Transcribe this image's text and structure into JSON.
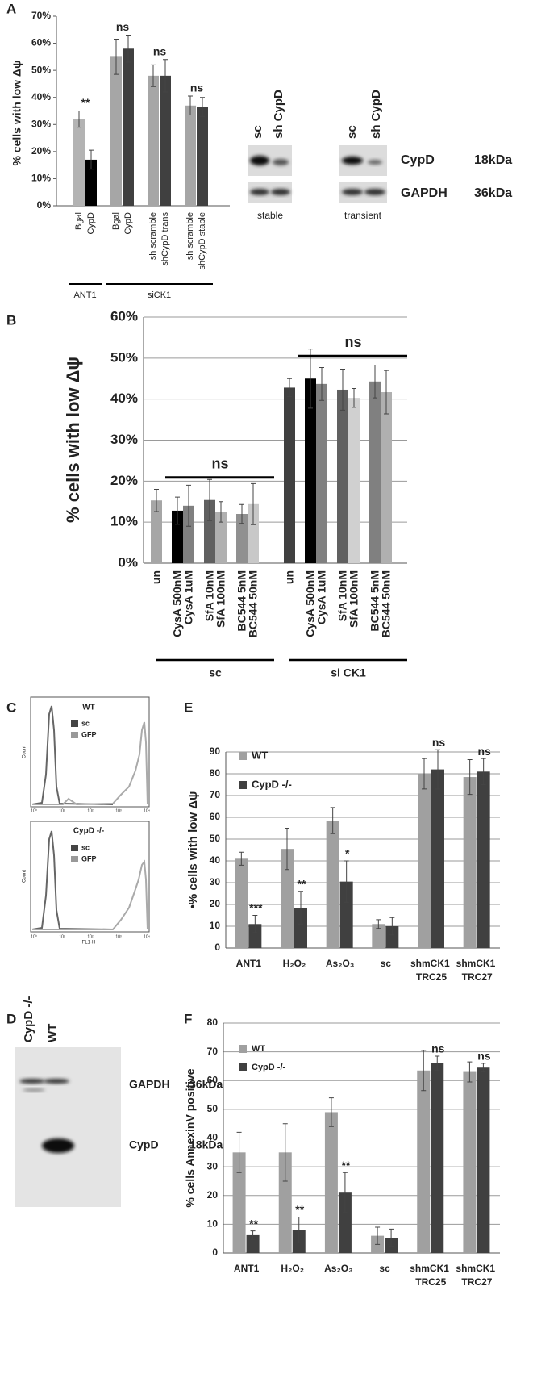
{
  "chart_data": [
    {
      "type": "bar",
      "panel": "A",
      "ylabel": "% cells with low Δψ",
      "ylim": [
        0,
        70
      ],
      "yticks": [
        {
          "value": 0,
          "label": "0%"
        },
        {
          "value": 10,
          "label": "10%"
        },
        {
          "value": 20,
          "label": "20%"
        },
        {
          "value": 30,
          "label": "30%"
        },
        {
          "value": 40,
          "label": "40%"
        },
        {
          "value": 50,
          "label": "50%"
        },
        {
          "value": 60,
          "label": "60%"
        },
        {
          "value": 70,
          "label": "70%"
        }
      ],
      "grid": false,
      "groups": [
        {
          "name": "ANT1",
          "pairs": [
            {
              "significance": "**",
              "bars": [
                {
                  "label": "Bgal",
                  "value": 32,
                  "error": 3,
                  "color": "#b3b3b3"
                },
                {
                  "label": "CypD",
                  "value": 17,
                  "error": 3.5,
                  "color": "#000000"
                }
              ]
            }
          ]
        },
        {
          "name": "siCK1",
          "pairs": [
            {
              "significance": "ns",
              "bars": [
                {
                  "label": "Bgal",
                  "value": 55,
                  "error": 6.5,
                  "color": "#a6a6a6"
                },
                {
                  "label": "CypD",
                  "value": 58,
                  "error": 5,
                  "color": "#404040"
                }
              ]
            },
            {
              "significance": "ns",
              "bars": [
                {
                  "label": "sh scramble",
                  "value": 48,
                  "error": 4,
                  "color": "#a6a6a6"
                },
                {
                  "label": "shCypD trans",
                  "value": 48,
                  "error": 6,
                  "color": "#404040"
                }
              ]
            },
            {
              "significance": "ns",
              "bars": [
                {
                  "label": "sh scramble",
                  "value": 37,
                  "error": 3.5,
                  "color": "#a6a6a6"
                },
                {
                  "label": "shCypD stable",
                  "value": 36.5,
                  "error": 3.5,
                  "color": "#404040"
                }
              ]
            }
          ]
        }
      ]
    },
    {
      "type": "bar",
      "panel": "B",
      "ylabel": "% cells with low Δψ",
      "ylim": [
        0,
        60
      ],
      "yticks": [
        {
          "value": 0,
          "label": "0%"
        },
        {
          "value": 10,
          "label": "10%"
        },
        {
          "value": 20,
          "label": "20%"
        },
        {
          "value": 30,
          "label": "30%"
        },
        {
          "value": 40,
          "label": "40%"
        },
        {
          "value": 50,
          "label": "50%"
        },
        {
          "value": 60,
          "label": "60%"
        }
      ],
      "grid": true,
      "categories": [
        "un",
        "CysA 500nM",
        "CysA 1uM",
        "SfA 10nM",
        "SfA 100nM",
        "BC544 5nM",
        "BC544 50nM"
      ],
      "groups": [
        {
          "name": "sc",
          "significance": "ns",
          "values": [
            15.3,
            12.8,
            14,
            15.4,
            12.5,
            12,
            14.4
          ],
          "errors": [
            2.7,
            3.3,
            5,
            5,
            2.5,
            2.3,
            5
          ],
          "colors": [
            "#a6a6a6",
            "#000000",
            "#808080",
            "#606060",
            "#b0b0b0",
            "#909090",
            "#c8c8c8"
          ]
        },
        {
          "name": "si CK1",
          "significance": "ns",
          "values": [
            42.8,
            45,
            43.7,
            42.3,
            40.3,
            44.3,
            41.7
          ],
          "errors": [
            2.2,
            7.2,
            4,
            5,
            2.3,
            4,
            5.3
          ],
          "colors": [
            "#404040",
            "#000000",
            "#808080",
            "#606060",
            "#d0d0d0",
            "#808080",
            "#b0b0b0"
          ]
        }
      ]
    },
    {
      "type": "bar",
      "panel": "E",
      "ylabel": "•% cells with low Δψ",
      "ylim": [
        0,
        90
      ],
      "yticks": [
        0,
        10,
        20,
        30,
        40,
        50,
        60,
        70,
        80,
        90
      ],
      "grid": true,
      "legend": "upper left",
      "categories": [
        "ANT1",
        "H₂O₂",
        "As₂O₃",
        "sc",
        "shmCK1 TRC25",
        "shmCK1 TRC27"
      ],
      "series": [
        {
          "name": "WT",
          "color": "#a0a0a0",
          "values": [
            41,
            45.5,
            58.5,
            11,
            80,
            78.5
          ],
          "errors": [
            3,
            9.5,
            6,
            2,
            7,
            8
          ]
        },
        {
          "name": "CypD -/-",
          "color": "#404040",
          "values": [
            11,
            18.5,
            30.5,
            10,
            82,
            81
          ],
          "errors": [
            4,
            7.5,
            9.5,
            4,
            9,
            6
          ]
        }
      ],
      "annotations": [
        "***",
        "**",
        "*",
        null,
        "ns",
        "ns"
      ]
    },
    {
      "type": "bar",
      "panel": "F",
      "ylabel": "% cells  AnnexinV positive",
      "ylim": [
        0,
        80
      ],
      "yticks": [
        0,
        10,
        20,
        30,
        40,
        50,
        60,
        70,
        80
      ],
      "grid": true,
      "legend": "upper left",
      "categories": [
        "ANT1",
        "H₂O₂",
        "As₂O₃",
        "sc",
        "shmCK1 TRC25",
        "shmCK1 TRC27"
      ],
      "series": [
        {
          "name": "WT",
          "color": "#a0a0a0",
          "values": [
            35,
            35,
            49,
            6,
            63.5,
            63
          ],
          "errors": [
            7,
            10,
            5,
            3,
            7,
            3.5
          ]
        },
        {
          "name": "CypD -/-",
          "color": "#404040",
          "values": [
            6.2,
            8,
            21,
            5.3,
            66,
            64.5
          ],
          "errors": [
            1.5,
            4.5,
            7,
            3,
            2.5,
            1.5
          ]
        }
      ],
      "annotations": [
        "**",
        "**",
        "**",
        null,
        "ns",
        "ns"
      ]
    }
  ],
  "blot_a": {
    "stable_lanes": [
      "sc",
      "sh CypD"
    ],
    "stable": "stable",
    "transient_lanes": [
      "sc",
      "sh CypD"
    ],
    "transient": "transient",
    "proteins": [
      {
        "name": "CypD",
        "size": "18kDa"
      },
      {
        "name": "GAPDH",
        "size": "36kDa"
      }
    ]
  },
  "flow_c": {
    "panel": "C",
    "xticks": [
      "10⁰",
      "10¹",
      "10²",
      "10³",
      "10⁴"
    ],
    "xlabel": "FL1-H",
    "plots": [
      {
        "title": "WT",
        "legend": [
          "sc",
          "GFP"
        ],
        "ylabel": "Count"
      },
      {
        "title": "CypD -/-",
        "legend": [
          "sc",
          "GFP"
        ],
        "ylabel": "Count"
      }
    ]
  },
  "blot_d": {
    "panel": "D",
    "lanes": [
      "CypD -/-",
      "WT"
    ],
    "proteins": [
      {
        "name": "GAPDH",
        "size": "36kDa"
      },
      {
        "name": "CypD",
        "size": "18kDa"
      }
    ]
  }
}
